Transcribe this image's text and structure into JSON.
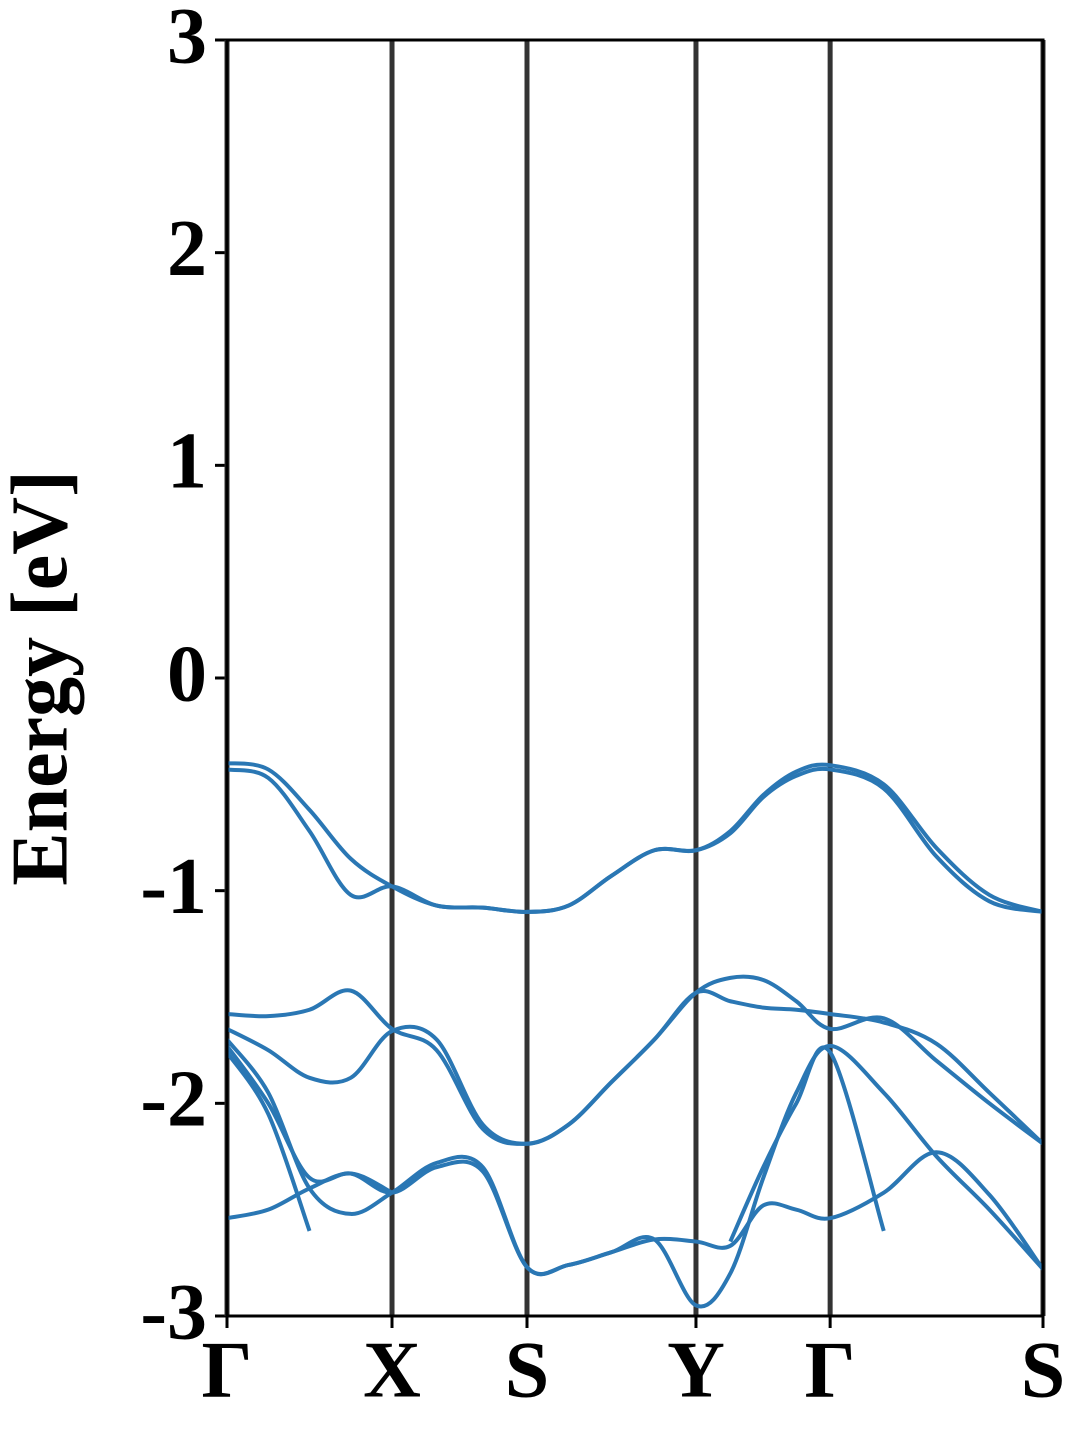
{
  "chart_data": {
    "type": "line",
    "ylabel": "Energy [eV]",
    "x": [
      0,
      0.25,
      0.5,
      0.75,
      1,
      1.27,
      1.55,
      1.818,
      2.07,
      2.33,
      2.59,
      2.842,
      3.05,
      3.25,
      3.45,
      3.655,
      3.98,
      4.3,
      4.62,
      4.945
    ],
    "xlim": [
      0,
      4.945
    ],
    "xticks": [
      {
        "value": 0,
        "label": "Γ"
      },
      {
        "value": 1,
        "label": "X"
      },
      {
        "value": 1.818,
        "label": "S"
      },
      {
        "value": 2.842,
        "label": "Y"
      },
      {
        "value": 3.655,
        "label": "Γ"
      },
      {
        "value": 4.945,
        "label": "S"
      }
    ],
    "ylim": [
      -3,
      3
    ],
    "yticks": [
      -3,
      -2,
      -1,
      0,
      1,
      2,
      3
    ],
    "grid": true,
    "series": [
      {
        "color": "#2a77b4",
        "values": [
          -0.4,
          -0.43,
          -0.62,
          -0.85,
          -0.98,
          -1.07,
          -1.08,
          -1.1,
          -1.07,
          -0.93,
          -0.81,
          -0.81,
          -0.72,
          -0.55,
          -0.44,
          -0.41,
          -0.5,
          -0.8,
          -1.02,
          -1.1
        ]
      },
      {
        "color": "#2a77b4",
        "values": [
          -0.43,
          -0.47,
          -0.72,
          -1.02,
          -0.98,
          -1.07,
          -1.08,
          -1.1,
          -1.07,
          -0.93,
          -0.81,
          -0.81,
          -0.73,
          -0.56,
          -0.46,
          -0.43,
          -0.52,
          -0.84,
          -1.05,
          -1.1
        ]
      },
      {
        "color": "#2a77b4",
        "values": [
          -1.58,
          -1.59,
          -1.56,
          -1.47,
          -1.65,
          -1.75,
          -2.12,
          -2.19,
          -2.1,
          -1.9,
          -1.7,
          -1.48,
          -1.52,
          -1.55,
          -1.56,
          -1.58,
          -1.62,
          -1.72,
          -1.95,
          -2.19
        ]
      },
      {
        "color": "#2a77b4",
        "values": [
          -1.65,
          -1.75,
          -1.88,
          -1.88,
          -1.66,
          -1.7,
          -2.1,
          -2.19,
          -2.1,
          -1.9,
          -1.7,
          -1.48,
          -1.41,
          -1.42,
          -1.52,
          -1.65,
          -1.6,
          -1.8,
          -2.0,
          -2.19
        ]
      },
      {
        "color": "#2a77b4",
        "values": [
          -1.7,
          -1.95,
          -2.4,
          -2.52,
          -2.42,
          -2.28,
          -2.3,
          -2.77,
          -2.76,
          -2.7,
          -2.64,
          -2.65,
          -2.67,
          -2.48,
          -2.5,
          -2.54,
          -2.42,
          -2.23,
          -2.43,
          -2.78
        ]
      },
      {
        "color": "#2a77b4",
        "values": [
          -1.73,
          -2.0,
          -2.35,
          -2.33,
          -2.42,
          -2.3,
          -2.32,
          -2.77,
          -2.76,
          -2.7,
          -2.64,
          -2.95,
          -2.8,
          -2.35,
          -1.95,
          -1.73,
          -1.95,
          -2.25,
          -2.5,
          -2.78
        ]
      },
      {
        "color": "#2a77b4",
        "values": [
          -2.54,
          -2.5,
          -2.4,
          -2.33,
          -2.42,
          null,
          null,
          null,
          null,
          null,
          null,
          null,
          null,
          null,
          null,
          null,
          null,
          null,
          null,
          null
        ]
      },
      {
        "color": "#2a77b4",
        "values": [
          -1.76,
          -2.05,
          -2.6,
          null,
          null,
          null,
          null,
          null,
          null,
          null,
          null,
          null,
          -2.65,
          -2.3,
          -2.0,
          -1.76,
          -2.6,
          null,
          null,
          null
        ]
      }
    ]
  }
}
